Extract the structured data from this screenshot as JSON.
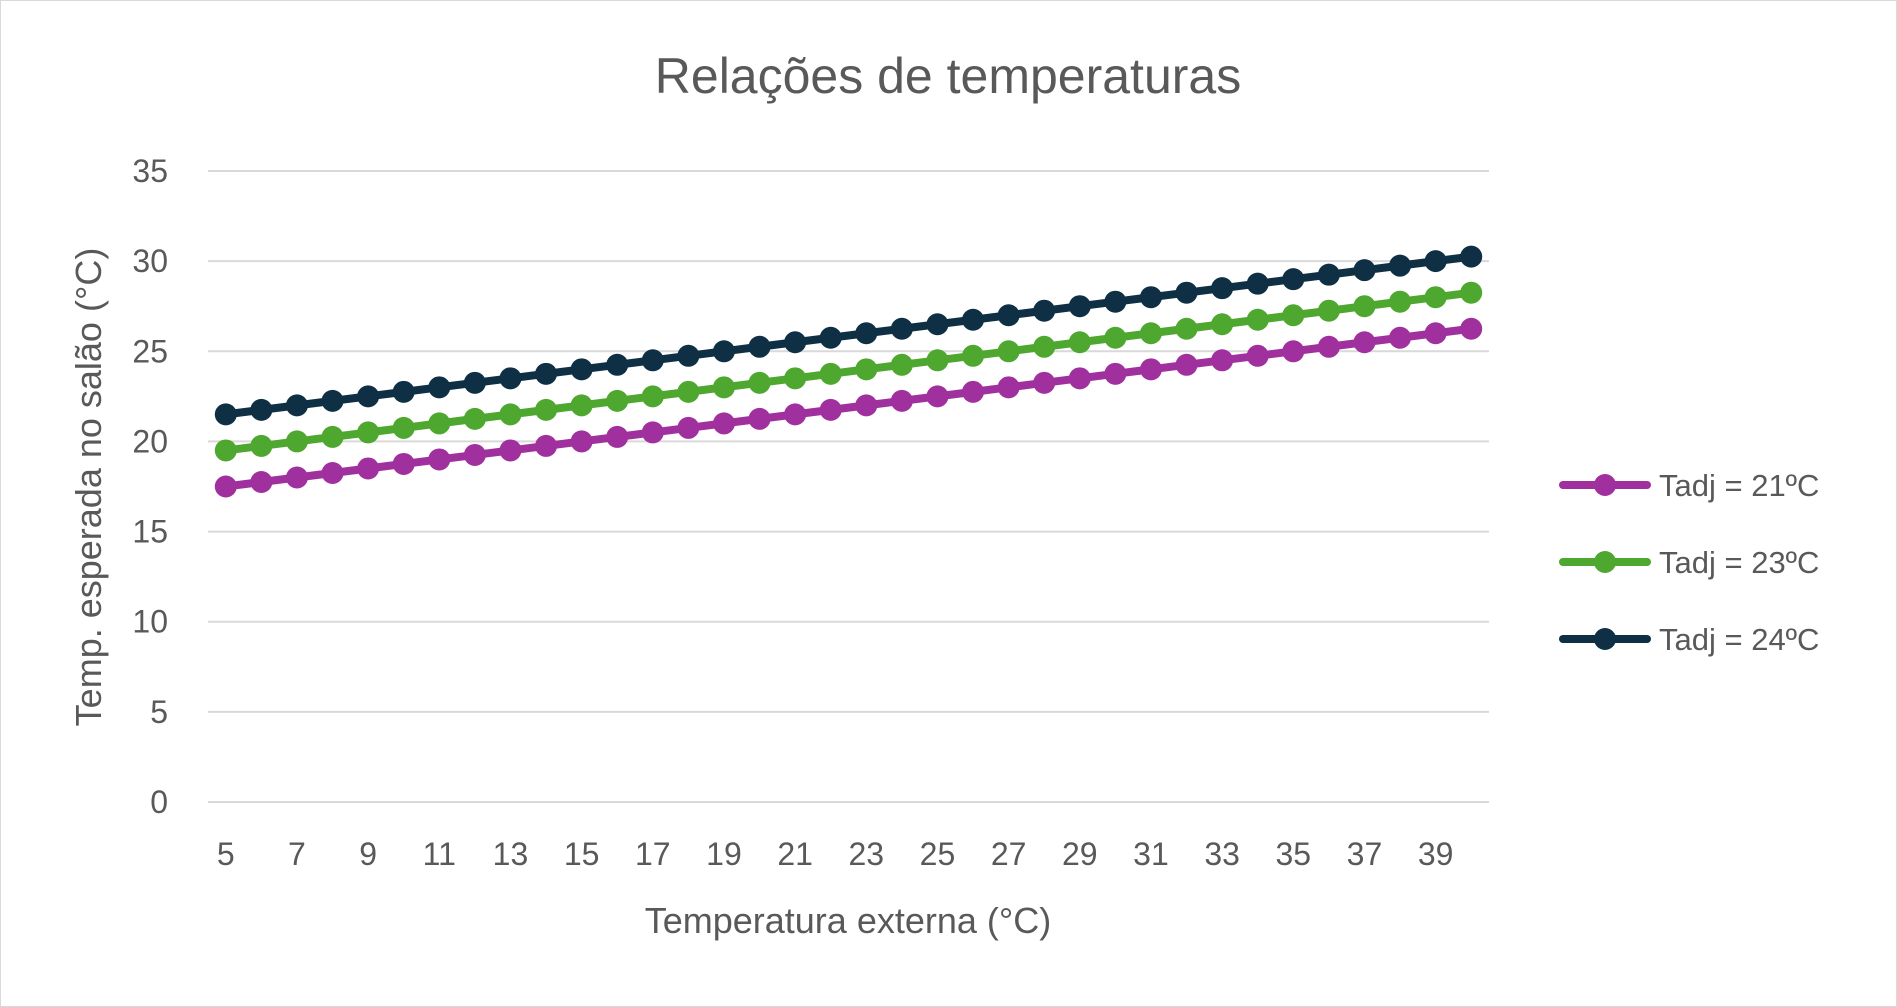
{
  "chart_data": {
    "type": "line",
    "title": "Relações de temperaturas",
    "xlabel": "Temperatura externa (°C)",
    "ylabel": "Temp. esperada no salão (°C)",
    "ylim": [
      0,
      35
    ],
    "yticks": [
      "0",
      "5",
      "10",
      "15",
      "20",
      "25",
      "30",
      "35"
    ],
    "grid": true,
    "legend_position": "right",
    "x": [
      5,
      6,
      7,
      8,
      9,
      10,
      11,
      12,
      13,
      14,
      15,
      16,
      17,
      18,
      19,
      20,
      21,
      22,
      23,
      24,
      25,
      26,
      27,
      28,
      29,
      30,
      31,
      32,
      33,
      34,
      35,
      36,
      37,
      38,
      39,
      40
    ],
    "xtick_labels": [
      "5",
      "7",
      "9",
      "11",
      "13",
      "15",
      "17",
      "19",
      "21",
      "23",
      "25",
      "27",
      "29",
      "31",
      "33",
      "35",
      "37",
      "39"
    ],
    "series": [
      {
        "name": "Tadj = 21ºC",
        "color": "#a0309e",
        "values": [
          17.5,
          17.75,
          18,
          18.25,
          18.5,
          18.75,
          19,
          19.25,
          19.5,
          19.75,
          20,
          20.25,
          20.5,
          20.75,
          21,
          21.25,
          21.5,
          21.75,
          22,
          22.25,
          22.5,
          22.75,
          23,
          23.25,
          23.5,
          23.75,
          24,
          24.25,
          24.5,
          24.75,
          25,
          25.25,
          25.5,
          25.75,
          26,
          26.25
        ]
      },
      {
        "name": "Tadj = 23ºC",
        "color": "#4ea72e",
        "values": [
          19.5,
          19.75,
          20,
          20.25,
          20.5,
          20.75,
          21,
          21.25,
          21.5,
          21.75,
          22,
          22.25,
          22.5,
          22.75,
          23,
          23.25,
          23.5,
          23.75,
          24,
          24.25,
          24.5,
          24.75,
          25,
          25.25,
          25.5,
          25.75,
          26,
          26.25,
          26.5,
          26.75,
          27,
          27.25,
          27.5,
          27.75,
          28,
          28.25
        ]
      },
      {
        "name": "Tadj = 24ºC",
        "color": "#0e2f44",
        "values": [
          21.5,
          21.75,
          22,
          22.25,
          22.5,
          22.75,
          23,
          23.25,
          23.5,
          23.75,
          24,
          24.25,
          24.5,
          24.75,
          25,
          25.25,
          25.5,
          25.75,
          26,
          26.25,
          26.5,
          26.75,
          27,
          27.25,
          27.5,
          27.75,
          28,
          28.25,
          28.5,
          28.75,
          29,
          29.25,
          29.5,
          29.75,
          30,
          30.25
        ]
      }
    ]
  }
}
